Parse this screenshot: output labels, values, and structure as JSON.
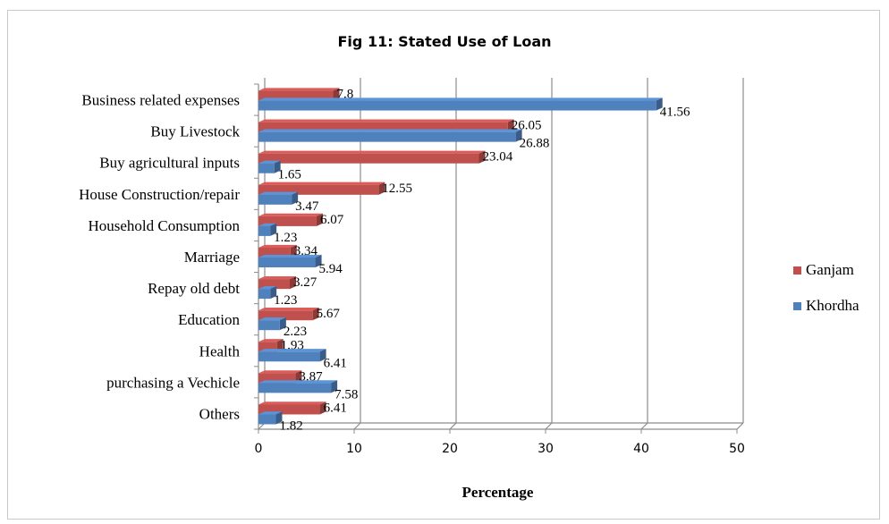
{
  "chart_data": {
    "type": "bar",
    "orientation": "horizontal",
    "title": "Fig 11: Stated Use of Loan",
    "xlabel": "Percentage",
    "ylabel": "",
    "xlim": [
      0,
      50
    ],
    "xticks": [
      0,
      10,
      20,
      30,
      40,
      50
    ],
    "grid": "vertical",
    "legend_position": "right",
    "categories": [
      "Business related expenses",
      "Buy Livestock",
      "Buy agricultural inputs",
      "House Construction/repair",
      "Household Consumption",
      "Marriage",
      "Repay old debt",
      "Education",
      "Health",
      "purchasing a Vechicle",
      "Others"
    ],
    "series": [
      {
        "name": "Ganjam",
        "color": "#c0504d",
        "values": [
          7.8,
          26.05,
          23.04,
          12.55,
          6.07,
          3.34,
          3.27,
          5.67,
          1.93,
          3.87,
          6.41
        ],
        "labels": [
          "7.8",
          "26.05",
          "23.04",
          "12.55",
          "6.07",
          "3.34",
          "3.27",
          "5.67",
          "1.93",
          "3.87",
          "6.41"
        ]
      },
      {
        "name": "Khordha",
        "color": "#4f81bd",
        "values": [
          41.56,
          26.88,
          1.65,
          3.47,
          1.23,
          5.94,
          1.23,
          2.23,
          6.41,
          7.58,
          1.82
        ],
        "labels": [
          "41.56",
          "26.88",
          "1.65",
          "3.47",
          "1.23",
          "5.94",
          "1.23",
          "2.23",
          "6.41",
          "7.58",
          "1.82"
        ]
      }
    ]
  }
}
